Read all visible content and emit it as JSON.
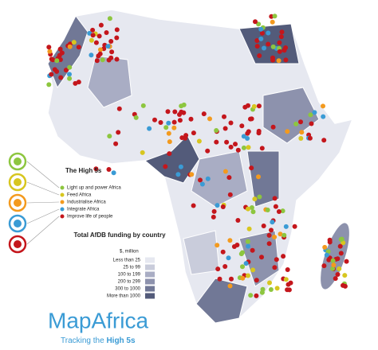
{
  "high5s": {
    "title": "The High 5s",
    "items": [
      {
        "label": "Light up and power Africa",
        "color": "#8dc63f"
      },
      {
        "label": "Feed Africa",
        "color": "#d7c61f"
      },
      {
        "label": "Industrialise Africa",
        "color": "#f39a1e"
      },
      {
        "label": "Integrate Africa",
        "color": "#3a9bd5"
      },
      {
        "label": "Improve life of people",
        "color": "#c4161c"
      }
    ]
  },
  "funding": {
    "title": "Total AfDB funding by country",
    "unit": "$, million",
    "items": [
      {
        "label": "Less than 25",
        "color": "#e6e8f0"
      },
      {
        "label": "25 to 99",
        "color": "#c9ccdb"
      },
      {
        "label": "100 to 199",
        "color": "#a9adc4"
      },
      {
        "label": "200 to 299",
        "color": "#8d92ad"
      },
      {
        "label": "300 to 1000",
        "color": "#717896"
      },
      {
        "label": "More than 1000",
        "color": "#535b7a"
      }
    ]
  },
  "logo": {
    "name": "MapAfrica",
    "tagline": [
      "Tracking the",
      "High 5s"
    ]
  }
}
